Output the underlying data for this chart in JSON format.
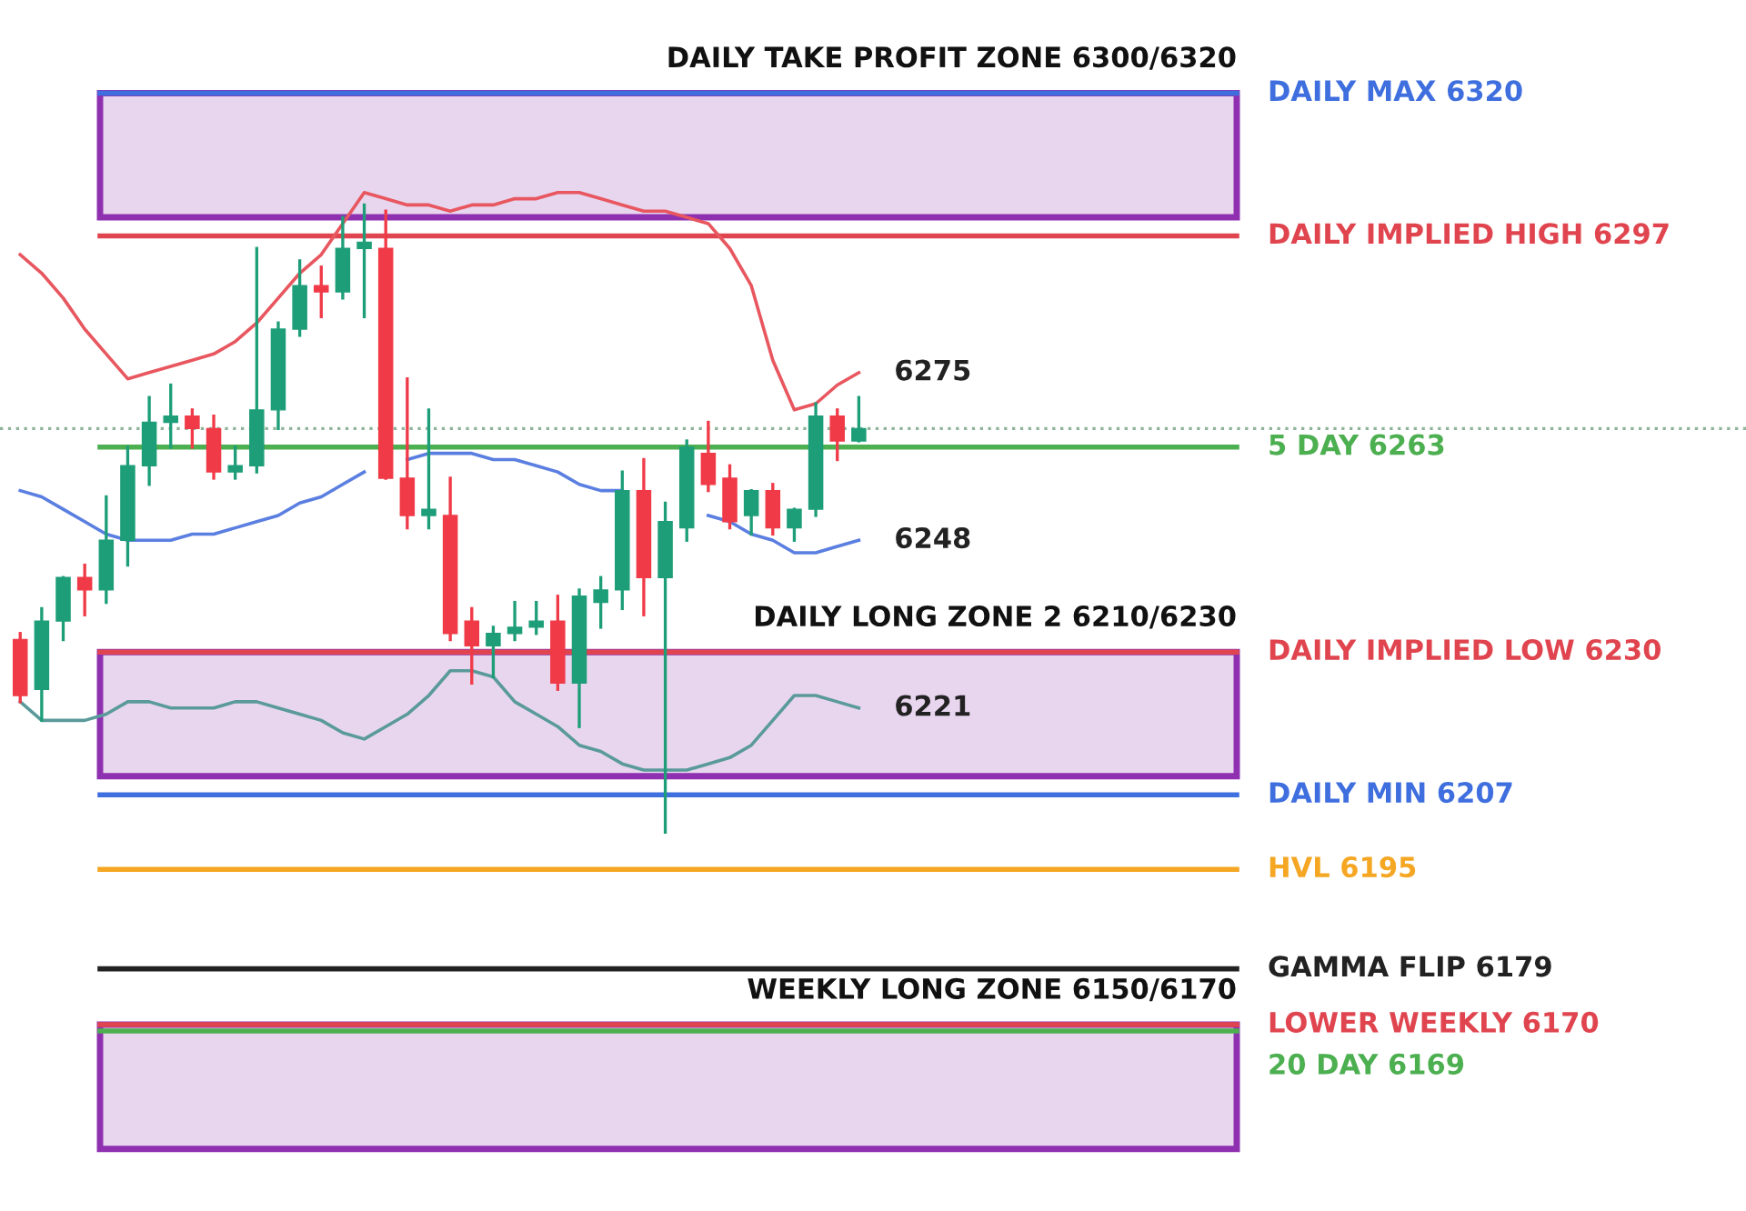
{
  "chart_data": {
    "type": "candlestick",
    "categories": [
      null,
      null,
      null,
      null,
      null,
      null,
      null,
      null,
      null,
      null,
      null,
      null,
      null,
      null,
      null,
      null,
      null,
      null,
      null,
      null,
      null,
      null,
      null,
      null,
      null,
      null,
      null,
      null,
      null,
      null,
      null,
      null,
      null,
      null,
      null,
      null,
      null,
      null,
      null,
      null
    ],
    "ohlc": [
      [
        6232,
        6233,
        6222,
        6223
      ],
      [
        6224,
        6237,
        6219,
        6235
      ],
      [
        6235,
        6242,
        6232,
        6242
      ],
      [
        6242,
        6244,
        6236,
        6240
      ],
      [
        6240,
        6255,
        6238,
        6248
      ],
      [
        6248,
        6263,
        6244,
        6260
      ],
      [
        6260,
        6271,
        6257,
        6267
      ],
      [
        6267,
        6273,
        6263,
        6268
      ],
      [
        6268,
        6269,
        6263,
        6266
      ],
      [
        6266,
        6268,
        6258,
        6259
      ],
      [
        6259,
        6263,
        6258,
        6260
      ],
      [
        6260,
        6295,
        6259,
        6269
      ],
      [
        6269,
        6283,
        6266,
        6282
      ],
      [
        6282,
        6293,
        6281,
        6289
      ],
      [
        6289,
        6292,
        6284,
        6288
      ],
      [
        6288,
        6300,
        6287,
        6295
      ],
      [
        6295,
        6302,
        6284,
        6296
      ],
      [
        6295,
        6301,
        6258,
        6258
      ],
      [
        6258,
        6274,
        6250,
        6252
      ],
      [
        6252,
        6269,
        6250,
        6253
      ],
      [
        6252,
        6258,
        6232,
        6233
      ],
      [
        6235,
        6237,
        6225,
        6231
      ],
      [
        6231,
        6234,
        6226,
        6233
      ],
      [
        6233,
        6238,
        6232,
        6234
      ],
      [
        6234,
        6238,
        6233,
        6235
      ],
      [
        6235,
        6239,
        6224,
        6225
      ],
      [
        6225,
        6240,
        6218,
        6239
      ],
      [
        6238,
        6242,
        6234,
        6240
      ],
      [
        6240,
        6259,
        6237,
        6256
      ],
      [
        6256,
        6261,
        6236,
        6242
      ],
      [
        6242,
        6254,
        6201,
        6251
      ],
      [
        6250,
        6264,
        6248,
        6263
      ],
      [
        6262,
        6267,
        6256,
        6257
      ],
      [
        6258,
        6260,
        6250,
        6251
      ],
      [
        6252,
        6256,
        6249,
        6256
      ],
      [
        6256,
        6257,
        6249,
        6250
      ],
      [
        6250,
        6253,
        6248,
        6253
      ],
      [
        6253,
        6270,
        6252,
        6268
      ],
      [
        6268,
        6269,
        6261,
        6264
      ],
      [
        6264,
        6271,
        6264,
        6266
      ]
    ],
    "colors": [
      "#f03a47",
      "#1e9e78",
      "#1e9e78",
      "#f03a47",
      "#1e9e78",
      "#1e9e78",
      "#1e9e78",
      "#1e9e78",
      "#f03a47",
      "#f03a47",
      "#1e9e78",
      "#1e9e78",
      "#1e9e78",
      "#1e9e78",
      "#f03a47",
      "#1e9e78",
      "#1e9e78",
      "#f03a47",
      "#f03a47",
      "#1e9e78",
      "#f03a47",
      "#f03a47",
      "#1e9e78",
      "#1e9e78",
      "#1e9e78",
      "#f03a47",
      "#1e9e78",
      "#1e9e78",
      "#1e9e78",
      "#f03a47",
      "#1e9e78",
      "#1e9e78",
      "#f03a47",
      "#f03a47",
      "#1e9e78",
      "#f03a47",
      "#1e9e78",
      "#1e9e78",
      "#f03a47",
      "#1e9e78"
    ],
    "series": [
      {
        "type": "line",
        "color": "#e8575f",
        "values": [
          6294,
          6291,
          6287,
          6282,
          6278,
          6274,
          6275,
          6276,
          6277,
          6278,
          6280,
          6283,
          6287,
          6291,
          6294,
          6299,
          6304,
          6303,
          6302,
          6302,
          6301,
          6302,
          6302,
          6303,
          6303,
          6304,
          6304,
          6303,
          6302,
          6301,
          6301,
          6300,
          6299,
          6295,
          6289,
          6277,
          6269,
          6270,
          6273,
          6275
        ],
        "value_labels": [
          null,
          null,
          null,
          null,
          null,
          null,
          null,
          null,
          null,
          null,
          null,
          null,
          null,
          null,
          null,
          null,
          null,
          null,
          null,
          null,
          null,
          null,
          null,
          null,
          null,
          null,
          null,
          null,
          null,
          null,
          null,
          null,
          null,
          null,
          null,
          null,
          null,
          null,
          null,
          "6275"
        ]
      },
      {
        "type": "line",
        "color": "#5b7fe0",
        "values": [
          6256,
          6255,
          6253,
          6251,
          6249,
          6248,
          6248,
          6248,
          6249,
          6249,
          6250,
          6251,
          6252,
          6254,
          6255,
          6257,
          6259,
          null,
          6261,
          6262,
          6262,
          6262,
          6261,
          6261,
          6260,
          6259,
          6257,
          6256,
          6256,
          null,
          null,
          null,
          6252,
          6251,
          6249,
          6248,
          6246,
          6246,
          6247,
          6248
        ],
        "value_labels": [
          null,
          null,
          null,
          null,
          null,
          null,
          null,
          null,
          null,
          null,
          null,
          null,
          null,
          null,
          null,
          null,
          null,
          null,
          null,
          null,
          null,
          null,
          null,
          null,
          null,
          null,
          null,
          null,
          null,
          null,
          null,
          null,
          null,
          null,
          null,
          null,
          null,
          null,
          null,
          "6248"
        ]
      },
      {
        "type": "line",
        "color": "#5a9a9a",
        "values": [
          6222,
          6219,
          6219,
          6219,
          6220,
          6222,
          6222,
          6221,
          6221,
          6221,
          6222,
          6222,
          6221,
          6220,
          6219,
          6217,
          6216,
          6218,
          6220,
          6223,
          6227,
          6227,
          6226,
          6222,
          6220,
          6218,
          6215,
          6214,
          6212,
          6211,
          6211,
          6211,
          6212,
          6213,
          6215,
          6219,
          6223,
          6223,
          6222,
          6221
        ],
        "value_labels": [
          null,
          null,
          null,
          null,
          null,
          null,
          null,
          null,
          null,
          null,
          null,
          null,
          null,
          null,
          null,
          null,
          null,
          null,
          null,
          null,
          null,
          null,
          null,
          null,
          null,
          null,
          null,
          null,
          null,
          null,
          null,
          null,
          null,
          null,
          null,
          null,
          null,
          null,
          null,
          "6221"
        ]
      }
    ],
    "bands": [
      {
        "axis": "y",
        "from": 6300,
        "to": 6320,
        "label": "DAILY TAKE PROFIT ZONE 6300/6320",
        "color": "#8e30b0"
      },
      {
        "axis": "y",
        "from": 6210,
        "to": 6230,
        "label": "DAILY LONG ZONE 2 6210/6230",
        "color": "#8e30b0"
      },
      {
        "axis": "y",
        "from": 6150,
        "to": 6170,
        "label": "WEEKLY LONG ZONE 6150/6170",
        "color": "#8e30b0"
      }
    ],
    "ref_lines": [
      {
        "axis": "y",
        "value": 6320,
        "label": "DAILY MAX 6320",
        "color": "#3f6fdf"
      },
      {
        "axis": "y",
        "value": 6297,
        "label": "DAILY IMPLIED HIGH 6297",
        "color": "#e0454f"
      },
      {
        "axis": "y",
        "value": 6266,
        "color": "#8fb39a",
        "line_style": "dotted"
      },
      {
        "axis": "y",
        "value": 6263,
        "label": "5 DAY 6263",
        "color": "#4caf50"
      },
      {
        "axis": "y",
        "value": 6230,
        "label": "DAILY IMPLIED LOW 6230",
        "color": "#e0454f"
      },
      {
        "axis": "y",
        "value": 6207,
        "label": "DAILY MIN 6207",
        "color": "#3f6fdf"
      },
      {
        "axis": "y",
        "value": 6195,
        "label": "HVL 6195",
        "color": "#f5a623"
      },
      {
        "axis": "y",
        "value": 6179,
        "label": "GAMMA FLIP 6179",
        "color": "#222222"
      },
      {
        "axis": "y",
        "value": 6170,
        "label": "LOWER WEEKLY 6170",
        "color": "#e0454f"
      },
      {
        "axis": "y",
        "value": 6169,
        "label": "20 DAY 6169",
        "color": "#4caf50"
      }
    ],
    "ylim": [
      6140,
      6335
    ],
    "legend": false
  }
}
